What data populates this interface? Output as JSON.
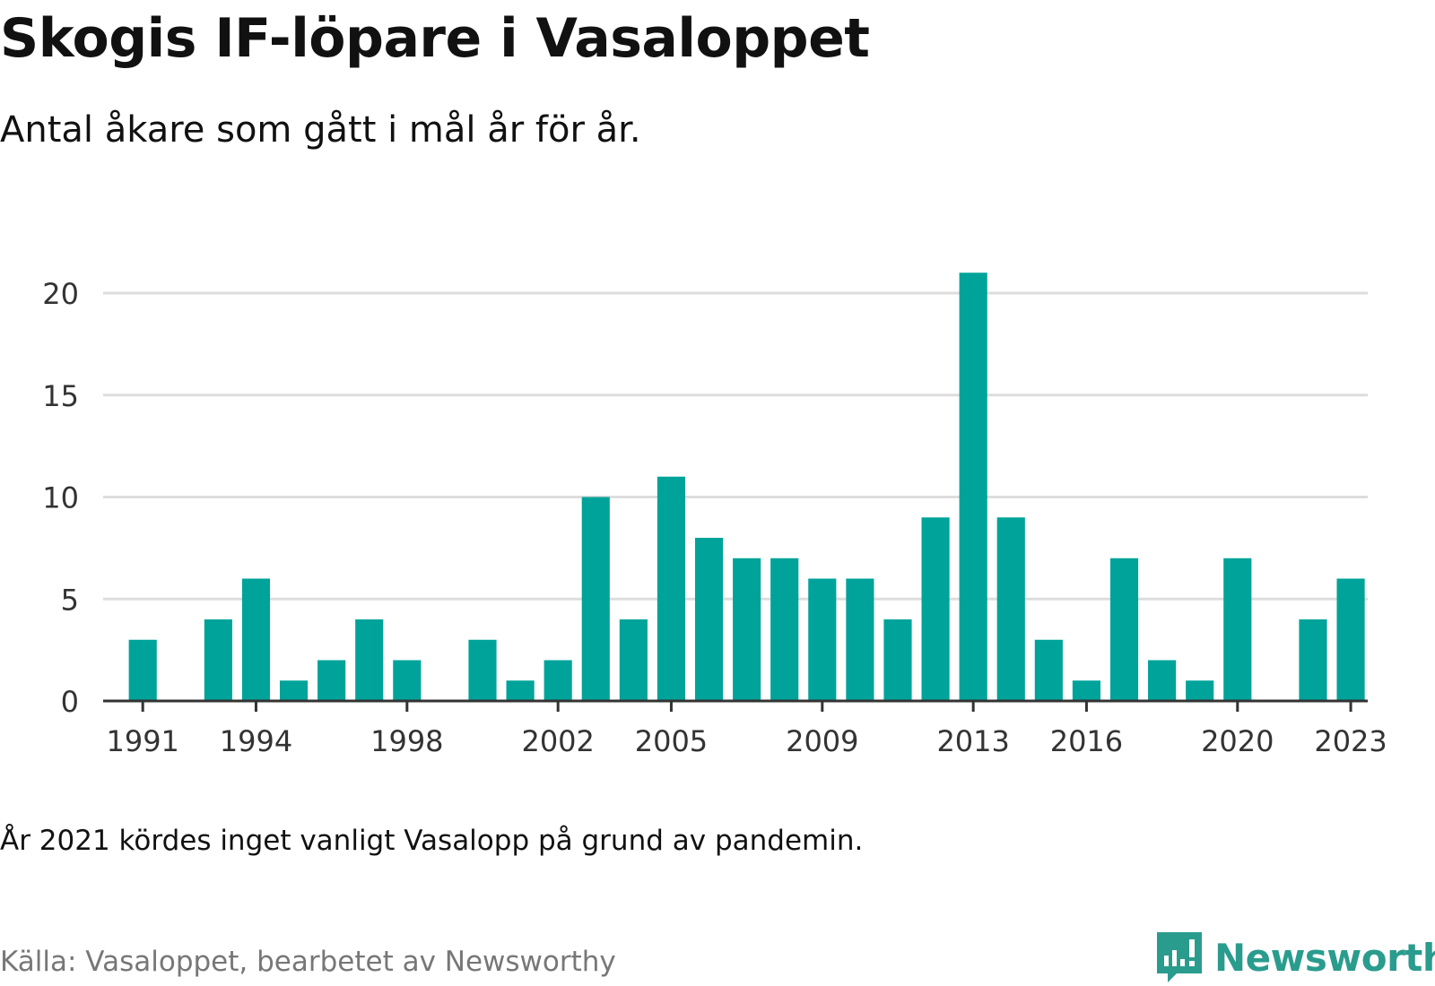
{
  "title": "Skogis IF-löpare i Vasaloppet",
  "subtitle": "Antal åkare som gått i mål år för år.",
  "note": "År 2021 kördes inget vanligt Vasalopp på grund av pandemin.",
  "source": "Källa: Vasaloppet, bearbetet av Newsworthy",
  "brand": {
    "name": "Newsworthy",
    "icon": "newsworthy-logo-icon",
    "color": "#2a9c8e"
  },
  "colors": {
    "bar": "#00a39a",
    "grid": "#dddddd",
    "axis": "#333333",
    "tick_text": "#333333"
  },
  "chart_data": {
    "type": "bar",
    "title": "",
    "xlabel": "",
    "ylabel": "",
    "categories": [
      1991,
      1992,
      1993,
      1994,
      1995,
      1996,
      1997,
      1998,
      1999,
      2000,
      2001,
      2002,
      2003,
      2004,
      2005,
      2006,
      2007,
      2008,
      2009,
      2010,
      2011,
      2012,
      2013,
      2014,
      2015,
      2016,
      2017,
      2018,
      2019,
      2020,
      2021,
      2022,
      2023
    ],
    "values": [
      3,
      0,
      4,
      6,
      1,
      2,
      4,
      2,
      0,
      3,
      1,
      2,
      10,
      4,
      11,
      8,
      7,
      7,
      6,
      6,
      4,
      9,
      21,
      9,
      3,
      1,
      7,
      2,
      1,
      7,
      0,
      4,
      6
    ],
    "x_tick_labels": [
      "1991",
      "1994",
      "1998",
      "2002",
      "2005",
      "2009",
      "2013",
      "2016",
      "2020",
      "2023"
    ],
    "y_ticks": [
      0,
      5,
      10,
      15,
      20
    ],
    "ylim": [
      0,
      21
    ],
    "grid": true,
    "legend": "none"
  }
}
